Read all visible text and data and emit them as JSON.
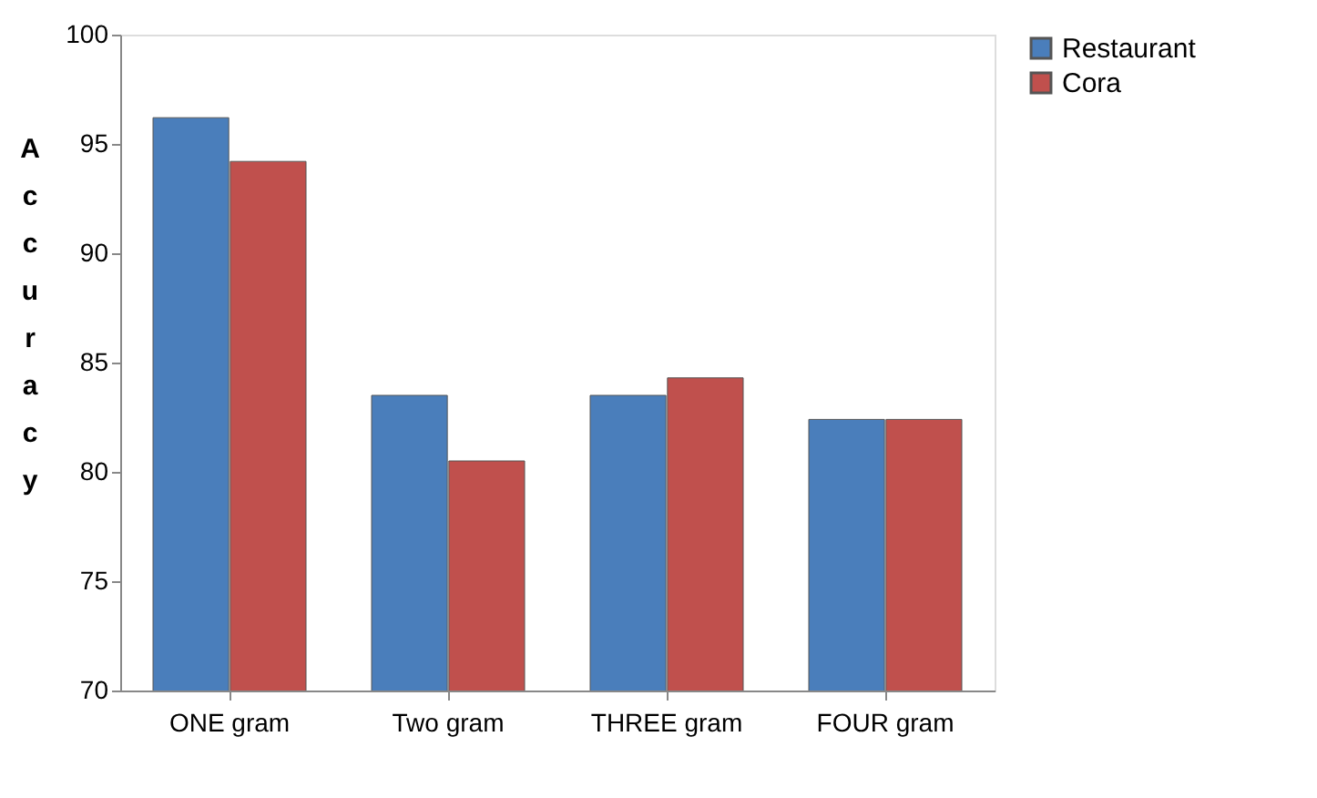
{
  "chart_data": {
    "type": "bar",
    "ylabel": "Accuracy",
    "categories": [
      "ONE gram",
      "Two gram",
      "THREE gram",
      "FOUR gram"
    ],
    "series": [
      {
        "name": "Restaurant",
        "color": "#4a7ebb",
        "values": [
          96.2,
          83.5,
          83.5,
          82.4
        ]
      },
      {
        "name": "Cora",
        "color": "#c0504d",
        "values": [
          94.2,
          80.5,
          84.3,
          82.4
        ]
      }
    ],
    "ylim": [
      70,
      100
    ],
    "yticks": [
      70,
      75,
      80,
      85,
      90,
      95,
      100
    ],
    "grid": false,
    "legend": "right"
  }
}
